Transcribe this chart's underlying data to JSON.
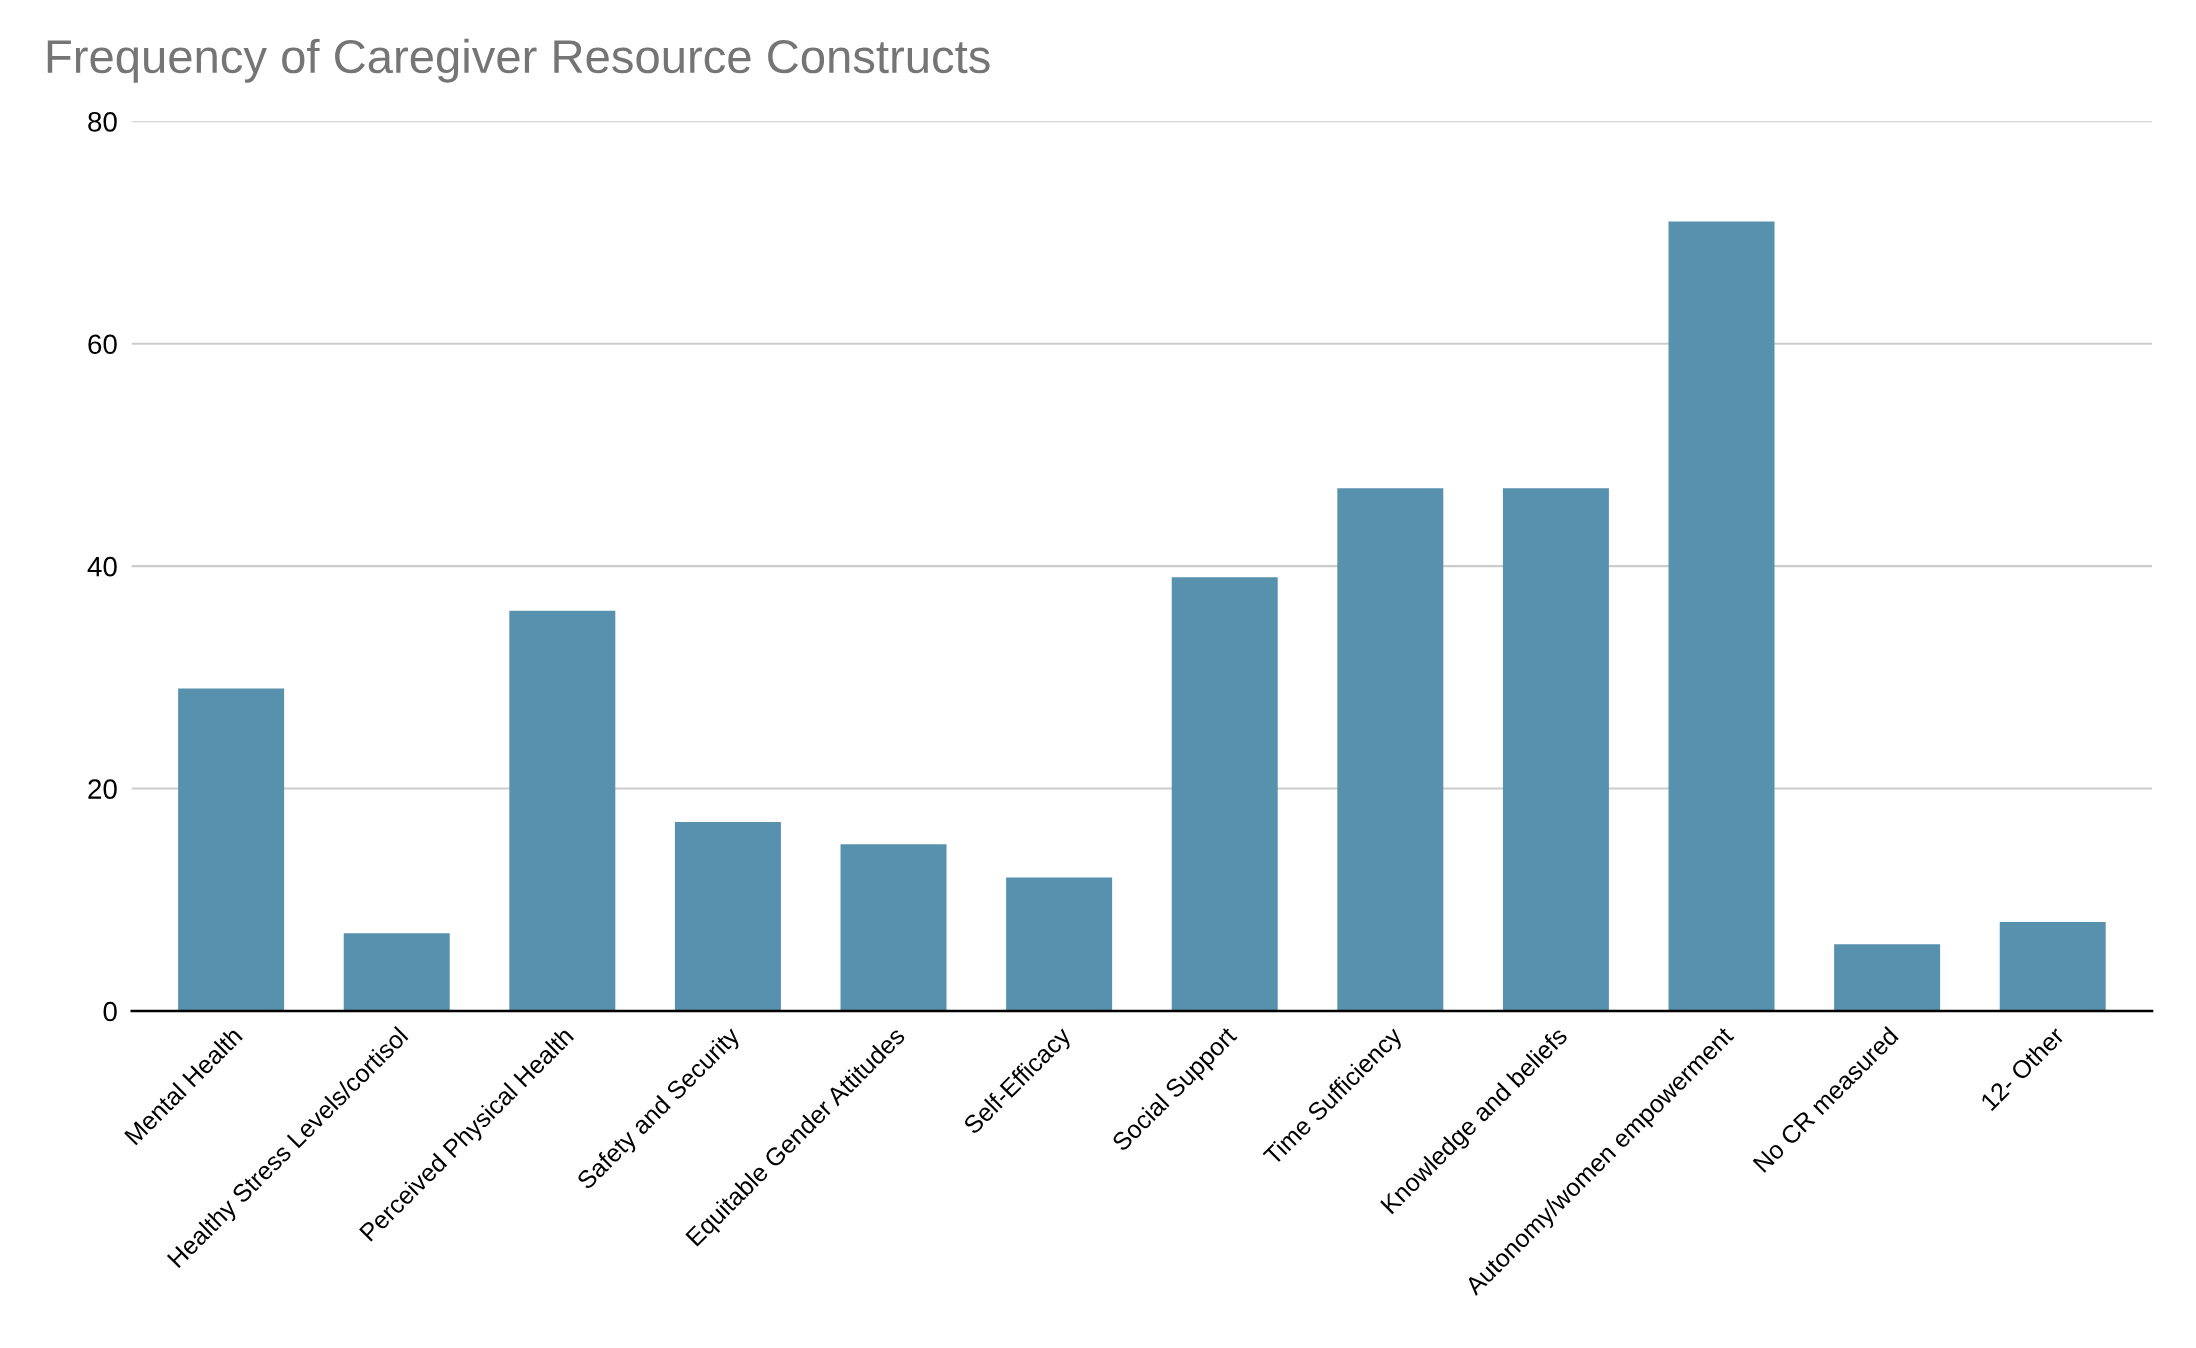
{
  "chart_data": {
    "type": "bar",
    "title": "Frequency of Caregiver Resource Constructs",
    "categories": [
      "Mental Health",
      "Healthy Stress Levels/cortisol",
      "Perceived Physical Health",
      "Safety and Security",
      "Equitable Gender Attitudes",
      "Self-Efficacy",
      "Social Support",
      "Time Sufficiency",
      "Knowledge and beliefs",
      "Autonomy/women empowerment",
      "No CR measured",
      "12- Other"
    ],
    "values": [
      29,
      7,
      36,
      17,
      15,
      12,
      39,
      47,
      47,
      71,
      6,
      8
    ],
    "color": "#5891ad",
    "ylim": [
      0,
      80
    ],
    "yticks": [
      0,
      20,
      40,
      60,
      80
    ],
    "grid": "y",
    "legend": false
  }
}
